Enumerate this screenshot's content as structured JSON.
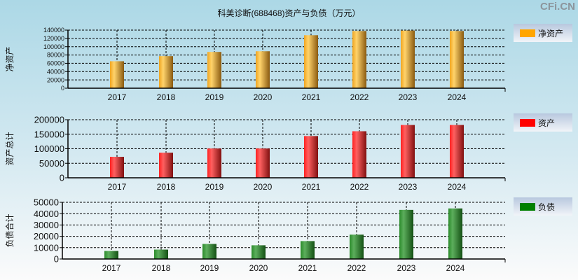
{
  "title": "科美诊断(688468)资产与负债（万元）",
  "logo": "CFi.CN",
  "chart_data": [
    {
      "type": "bar",
      "ylabel": "净资产",
      "legend": "净资产",
      "color": "#ffa500",
      "categories": [
        "2017",
        "2018",
        "2019",
        "2020",
        "2021",
        "2022",
        "2023",
        "2024"
      ],
      "values": [
        65000,
        77300,
        87400,
        89000,
        127700,
        137800,
        138900,
        137800
      ],
      "ylim": [
        0,
        140000
      ],
      "yticks": [
        0,
        20000,
        40000,
        60000,
        80000,
        100000,
        120000,
        140000
      ],
      "grid": true,
      "legend_position": "right"
    },
    {
      "type": "bar",
      "ylabel": "资产总计",
      "legend": "资产",
      "color": "#ff0000",
      "categories": [
        "2017",
        "2018",
        "2019",
        "2020",
        "2021",
        "2022",
        "2023",
        "2024"
      ],
      "values": [
        72200,
        86500,
        100800,
        100800,
        143700,
        160300,
        181800,
        181800
      ],
      "ylim": [
        0,
        200000
      ],
      "yticks": [
        0,
        50000,
        100000,
        150000,
        200000
      ],
      "grid": true,
      "legend_position": "right"
    },
    {
      "type": "bar",
      "ylabel": "负债合计",
      "legend": "负债",
      "color": "#008000",
      "categories": [
        "2017",
        "2018",
        "2019",
        "2020",
        "2021",
        "2022",
        "2023",
        "2024"
      ],
      "values": [
        7100,
        8300,
        13300,
        12100,
        15800,
        21500,
        43300,
        44600
      ],
      "ylim": [
        0,
        50000
      ],
      "yticks": [
        0,
        10000,
        20000,
        30000,
        40000,
        50000
      ],
      "grid": true,
      "legend_position": "right"
    }
  ]
}
